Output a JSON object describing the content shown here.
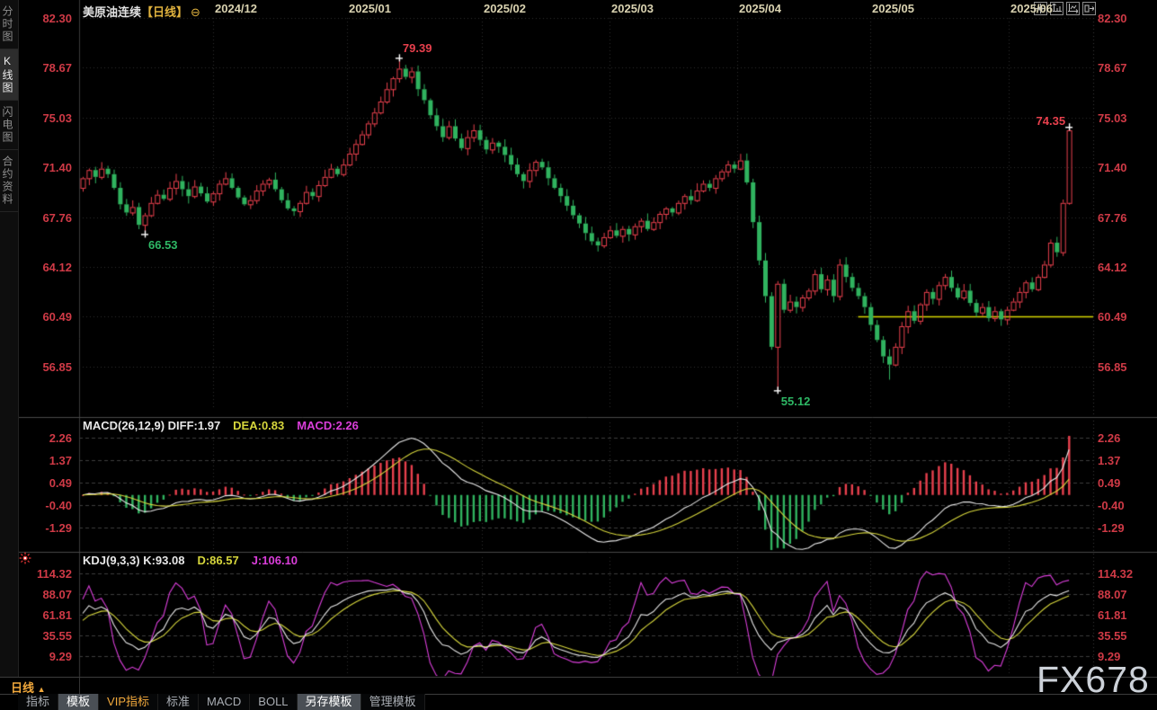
{
  "header": {
    "symbol": "美原油连续",
    "period_tag": "【日线】",
    "collapse_icon": "⊖"
  },
  "sidebar": {
    "items": [
      {
        "name": "time-share-chart",
        "label": "分时图",
        "active": false
      },
      {
        "name": "kline-chart",
        "label": "K线图",
        "active": true
      },
      {
        "name": "lightning-chart",
        "label": "闪电图",
        "active": false
      },
      {
        "name": "contract-info",
        "label": "合约资料",
        "active": false
      }
    ]
  },
  "toolbar": {
    "icons": [
      "crosshair-icon",
      "y-axis-tool-icon",
      "x-axis-tool-icon",
      "pane-shift-icon"
    ]
  },
  "colors": {
    "up": "#e8404d",
    "down": "#30b35f",
    "axis_label": "#cf3a46",
    "grid_dot": "#2f2f2f",
    "grid_dash": "#3d3d3d",
    "separator": "#484848",
    "diff_line": "#e8e8e8",
    "dea_line": "#d6d63c",
    "j_line": "#da3eda",
    "yellow_line": "#d6d600",
    "annotation_up": "#e8404d",
    "annotation_down": "#2eb865"
  },
  "chart_data": {
    "type": "candlestick",
    "title": "美原油连续 日线",
    "x_axis": {
      "dates": [
        "2024/12",
        "2025/01",
        "2025/02",
        "2025/03",
        "2025/04",
        "2025/05",
        "2025/06"
      ]
    },
    "panels": {
      "price": {
        "yticks": [
          82.3,
          78.67,
          75.03,
          71.4,
          67.76,
          64.12,
          60.49,
          56.85
        ],
        "open_first": 69.9,
        "closes": [
          70.6,
          71.2,
          70.7,
          71.3,
          70.9,
          69.9,
          68.7,
          68.1,
          68.5,
          67.2,
          67.9,
          68.8,
          69.4,
          69.1,
          69.9,
          70.4,
          69.8,
          69.3,
          70.0,
          69.5,
          68.9,
          69.5,
          70.2,
          70.6,
          69.9,
          69.2,
          68.7,
          69.0,
          69.7,
          70.2,
          70.5,
          69.8,
          69.0,
          68.4,
          68.2,
          68.8,
          69.6,
          69.3,
          70.1,
          70.7,
          71.3,
          70.9,
          71.6,
          72.4,
          73.1,
          73.8,
          74.6,
          75.4,
          76.2,
          77.1,
          77.9,
          78.6,
          78.0,
          78.4,
          77.1,
          76.3,
          75.2,
          74.4,
          73.6,
          74.4,
          73.5,
          72.8,
          73.6,
          74.1,
          73.4,
          72.7,
          73.2,
          72.9,
          72.3,
          71.6,
          70.9,
          70.4,
          71.2,
          71.8,
          71.4,
          70.6,
          69.9,
          69.3,
          68.6,
          67.9,
          67.3,
          66.6,
          66.0,
          65.7,
          66.3,
          66.8,
          66.4,
          66.9,
          66.5,
          67.1,
          67.5,
          66.9,
          67.4,
          68.0,
          68.4,
          68.1,
          68.8,
          69.3,
          69.0,
          69.7,
          70.2,
          69.9,
          70.6,
          71.1,
          71.6,
          71.3,
          71.9,
          70.3,
          67.4,
          64.6,
          62.0,
          58.3,
          62.9,
          61.0,
          61.6,
          61.2,
          61.9,
          62.4,
          63.6,
          62.5,
          63.2,
          62.0,
          64.3,
          63.4,
          62.6,
          62.0,
          61.2,
          59.9,
          58.8,
          57.6,
          57.0,
          58.3,
          59.8,
          60.9,
          60.2,
          61.4,
          62.3,
          61.8,
          62.8,
          63.4,
          62.6,
          61.9,
          62.4,
          61.5,
          60.8,
          61.2,
          60.4,
          60.9,
          60.3,
          61.0,
          61.6,
          62.3,
          63.0,
          62.5,
          63.4,
          64.3,
          65.9,
          65.2,
          68.8,
          74.1
        ],
        "special_high": {
          "51": 79.39,
          "159": 74.35
        },
        "special_low": {
          "10": 66.53,
          "112": 55.12,
          "130": 55.9
        },
        "annotations": [
          {
            "index": 51,
            "text": "79.39",
            "pos": "above",
            "color": "up"
          },
          {
            "index": 10,
            "text": "66.53",
            "pos": "below",
            "color": "down"
          },
          {
            "index": 112,
            "text": "55.12",
            "pos": "below",
            "color": "down"
          },
          {
            "index": 159,
            "text": "74.35",
            "pos": "left",
            "color": "up"
          }
        ],
        "hline": {
          "value": 60.49,
          "start_index": 125
        }
      },
      "macd": {
        "name_label": "MACD(26,12,9)",
        "diff_label": "DIFF:1.97",
        "dea_label": "DEA:0.83",
        "macd_label": "MACD:2.26",
        "params": [
          26,
          12,
          9
        ],
        "last_values": {
          "diff": 1.97,
          "dea": 0.83,
          "macd": 2.26
        },
        "yticks": [
          2.26,
          1.37,
          0.49,
          -0.4,
          -1.29
        ]
      },
      "kdj": {
        "name_label": "KDJ(9,3,3)",
        "k_label": "K:93.08",
        "d_label": "D:86.57",
        "j_label": "J:106.10",
        "params": [
          9,
          3,
          3
        ],
        "last_values": {
          "k": 93.08,
          "d": 86.57,
          "j": 106.1
        },
        "yticks": [
          114.32,
          88.07,
          61.81,
          35.55,
          9.29
        ]
      }
    }
  },
  "bottom": {
    "period_label": "日线",
    "period_arrow": "▲",
    "tabs": [
      {
        "name": "indicators",
        "label": "指标",
        "selected": false,
        "vip": false
      },
      {
        "name": "templates",
        "label": "模板",
        "selected": true,
        "vip": false
      },
      {
        "name": "vip-indicators",
        "label": "VIP指标",
        "selected": false,
        "vip": true
      },
      {
        "name": "standard",
        "label": "标准",
        "selected": false,
        "vip": false
      },
      {
        "name": "macd",
        "label": "MACD",
        "selected": false,
        "vip": false
      },
      {
        "name": "boll",
        "label": "BOLL",
        "selected": false,
        "vip": false
      },
      {
        "name": "save-template",
        "label": "另存模板",
        "selected": true,
        "vip": false
      },
      {
        "name": "manage-template",
        "label": "管理模板",
        "selected": false,
        "vip": false
      }
    ]
  },
  "watermark": "FX678"
}
